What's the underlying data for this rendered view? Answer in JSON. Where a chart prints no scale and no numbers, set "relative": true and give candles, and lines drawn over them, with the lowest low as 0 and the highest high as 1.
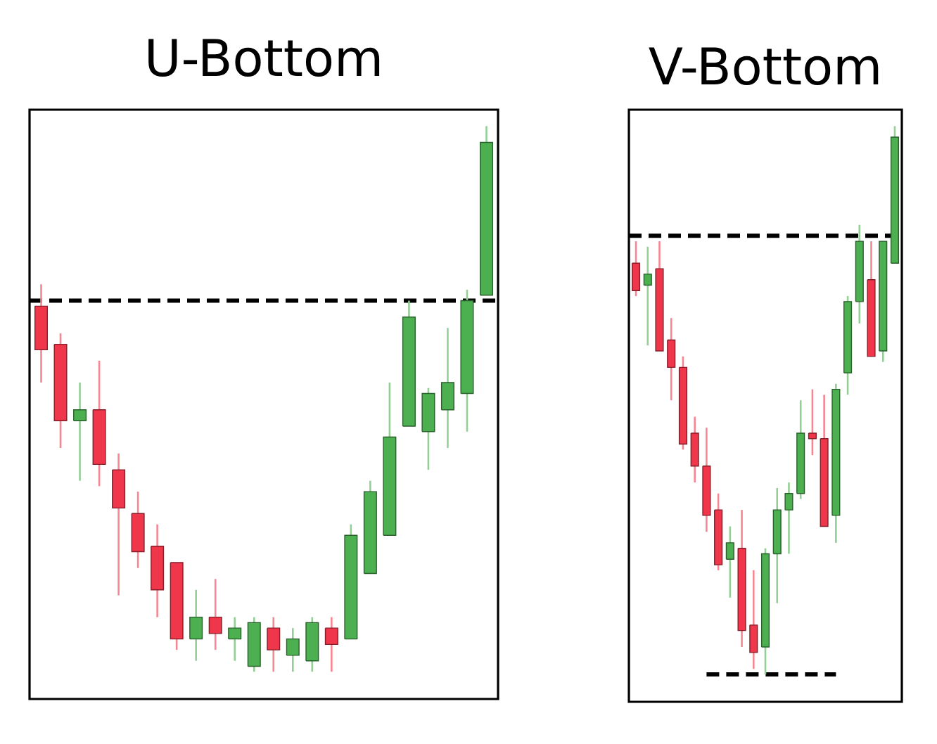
{
  "chart_data": [
    {
      "type": "candlestick",
      "title": "U-Bottom",
      "relative": true,
      "categories": [
        null,
        null,
        null,
        null,
        null,
        null,
        null,
        null,
        null,
        null,
        null,
        null,
        null,
        null,
        null,
        null,
        null,
        null,
        null,
        null,
        null,
        null,
        null,
        null
      ],
      "ohlc": [
        [
          0.67,
          0.71,
          0.53,
          0.59
        ],
        [
          0.6,
          0.62,
          0.41,
          0.46
        ],
        [
          0.46,
          0.53,
          0.35,
          0.48
        ],
        [
          0.48,
          0.57,
          0.34,
          0.38
        ],
        [
          0.37,
          0.4,
          0.14,
          0.3
        ],
        [
          0.29,
          0.33,
          0.19,
          0.22
        ],
        [
          0.23,
          0.27,
          0.1,
          0.15
        ],
        [
          0.2,
          0.2,
          0.04,
          0.06
        ],
        [
          0.06,
          0.15,
          0.02,
          0.1
        ],
        [
          0.1,
          0.17,
          0.04,
          0.07
        ],
        [
          0.06,
          0.1,
          0.02,
          0.08
        ],
        [
          0.01,
          0.1,
          0,
          0.09
        ],
        [
          0.08,
          0.1,
          0,
          0.04
        ],
        [
          0.03,
          0.08,
          0,
          0.06
        ],
        [
          0.02,
          0.1,
          0,
          0.09
        ],
        [
          0.08,
          0.1,
          0,
          0.05
        ],
        [
          0.06,
          0.27,
          0.06,
          0.25
        ],
        [
          0.18,
          0.35,
          0.18,
          0.33
        ],
        [
          0.25,
          0.53,
          0.25,
          0.43
        ],
        [
          0.45,
          0.68,
          0.45,
          0.65
        ],
        [
          0.44,
          0.52,
          0.37,
          0.51
        ],
        [
          0.48,
          0.63,
          0.41,
          0.53
        ],
        [
          0.51,
          0.7,
          0.44,
          0.68
        ],
        [
          0.69,
          1,
          0.69,
          0.97
        ]
      ],
      "colors": [
        "#f0364a",
        "#f0364a",
        "#4caf50",
        "#f0364a",
        "#f0364a",
        "#f0364a",
        "#f0364a",
        "#f0364a",
        "#4caf50",
        "#f0364a",
        "#4caf50",
        "#4caf50",
        "#f0364a",
        "#4caf50",
        "#4caf50",
        "#f0364a",
        "#4caf50",
        "#4caf50",
        "#4caf50",
        "#4caf50",
        "#4caf50",
        "#4caf50",
        "#4caf50",
        "#4caf50"
      ],
      "ref_lines": [
        {
          "axis": "y",
          "value": 0.68,
          "color": "#000000",
          "line_style": "dashed"
        }
      ]
    },
    {
      "type": "candlestick",
      "title": "V-Bottom",
      "relative": true,
      "categories": [
        null,
        null,
        null,
        null,
        null,
        null,
        null,
        null,
        null,
        null,
        null,
        null,
        null,
        null,
        null,
        null,
        null,
        null,
        null,
        null,
        null,
        null,
        null
      ],
      "ohlc": [
        [
          0.75,
          0.79,
          0.69,
          0.7
        ],
        [
          0.71,
          0.78,
          0.6,
          0.73
        ],
        [
          0.74,
          0.79,
          0.59,
          0.59
        ],
        [
          0.61,
          0.65,
          0.5,
          0.56
        ],
        [
          0.56,
          0.58,
          0.41,
          0.42
        ],
        [
          0.44,
          0.47,
          0.35,
          0.38
        ],
        [
          0.38,
          0.45,
          0.26,
          0.29
        ],
        [
          0.3,
          0.33,
          0.19,
          0.2
        ],
        [
          0.21,
          0.27,
          0.14,
          0.24
        ],
        [
          0.23,
          0.3,
          0.05,
          0.08
        ],
        [
          0.09,
          0.19,
          0.01,
          0.04
        ],
        [
          0.05,
          0.23,
          0,
          0.22
        ],
        [
          0.22,
          0.34,
          0.13,
          0.3
        ],
        [
          0.3,
          0.35,
          0.22,
          0.33
        ],
        [
          0.33,
          0.5,
          0.32,
          0.44
        ],
        [
          0.44,
          0.52,
          0.4,
          0.43
        ],
        [
          0.43,
          0.51,
          0.27,
          0.27
        ],
        [
          0.29,
          0.53,
          0.24,
          0.52
        ],
        [
          0.55,
          0.69,
          0.51,
          0.68
        ],
        [
          0.68,
          0.82,
          0.64,
          0.79
        ],
        [
          0.72,
          0.79,
          0.58,
          0.58
        ],
        [
          0.59,
          0.79,
          0.57,
          0.79
        ],
        [
          0.75,
          1,
          0.75,
          0.98
        ]
      ],
      "colors": [
        "#f0364a",
        "#4caf50",
        "#f0364a",
        "#f0364a",
        "#f0364a",
        "#f0364a",
        "#f0364a",
        "#f0364a",
        "#4caf50",
        "#f0364a",
        "#f0364a",
        "#4caf50",
        "#4caf50",
        "#4caf50",
        "#4caf50",
        "#f0364a",
        "#f0364a",
        "#4caf50",
        "#4caf50",
        "#4caf50",
        "#f0364a",
        "#4caf50",
        "#4caf50"
      ],
      "series": [
        {
          "type": "line",
          "color": "#000000",
          "line_style": "dashed",
          "values": [
            null,
            null,
            null,
            null,
            null,
            null,
            0,
            0,
            0,
            0,
            0,
            0,
            0,
            0,
            0,
            0,
            0,
            0,
            null,
            null,
            null,
            null,
            null
          ]
        }
      ],
      "ref_lines": [
        {
          "axis": "y",
          "value": 0.8,
          "color": "#000000",
          "line_style": "dashed"
        }
      ]
    }
  ]
}
